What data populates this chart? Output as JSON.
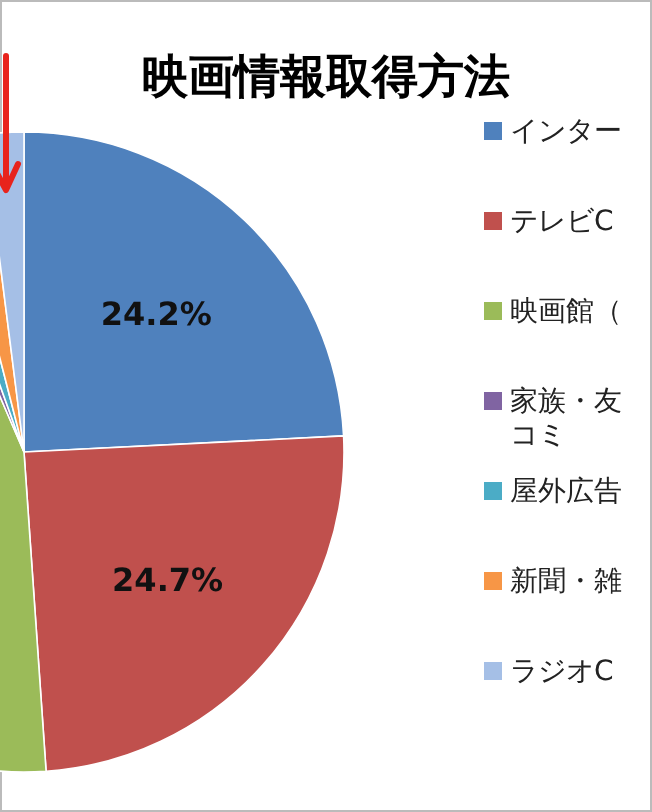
{
  "chart_data": {
    "type": "pie",
    "title": "映画情報取得方法",
    "categories": [
      "インター",
      "テレビC",
      "映画館（",
      "家族・友コミ",
      "屋外広告",
      "新聞・雑",
      "ラジオC"
    ],
    "values": [
      24.2,
      24.7,
      44.6,
      1.0,
      1.5,
      2.0,
      2.0
    ],
    "colors": [
      "#4f81bd",
      "#c0504d",
      "#9bbb59",
      "#8064a2",
      "#4bacc6",
      "#f79646",
      "#a5bfe6"
    ],
    "value_labels": [
      "24.2%",
      "24.7%",
      null,
      null,
      null,
      null,
      null
    ],
    "legend": "right"
  }
}
